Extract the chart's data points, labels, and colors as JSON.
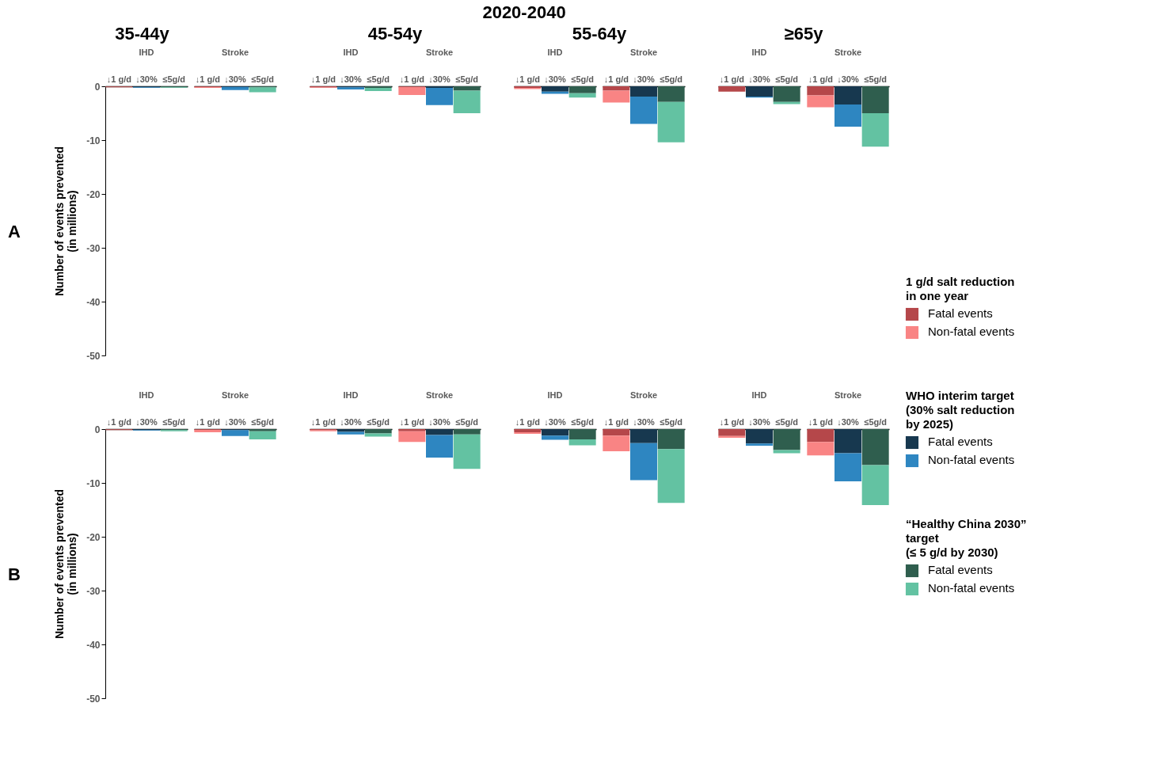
{
  "chart_data": [
    {
      "type": "bar",
      "stacked": true,
      "title": "IHD",
      "ylabel": "Number of events prevented\n(in millions)",
      "annotations": [
        "2020-2040",
        "35-44y",
        "A"
      ],
      "categories": [
        "↓1 g/d",
        "↓30%",
        "≤5g/d"
      ],
      "ylim": [
        -50,
        0
      ],
      "yticks": [
        0,
        -10,
        -20,
        -30,
        -40,
        -50
      ],
      "series": [
        {
          "color": "#b5474a",
          "values": [
            -0.1,
            null,
            null
          ]
        },
        {
          "color": "#f98484",
          "values": [
            -0.1,
            null,
            null
          ]
        },
        {
          "color": "#17384f",
          "values": [
            null,
            -0.2,
            null
          ]
        },
        {
          "color": "#2e86c1",
          "values": [
            null,
            -0.1,
            null
          ]
        },
        {
          "color": "#2f5e4e",
          "values": [
            null,
            null,
            -0.2
          ]
        },
        {
          "color": "#63c2a2",
          "values": [
            null,
            null,
            -0.1
          ]
        }
      ]
    },
    {
      "type": "bar",
      "stacked": true,
      "title": "Stroke",
      "tick_labels": "x",
      "categories": [
        "↓1 g/d",
        "↓30%",
        "≤5g/d"
      ],
      "ylim": [
        -50,
        0
      ],
      "series": [
        {
          "color": "#b5474a",
          "values": [
            -0.1,
            null,
            null
          ]
        },
        {
          "color": "#f98484",
          "values": [
            -0.2,
            null,
            null
          ]
        },
        {
          "color": "#17384f",
          "values": [
            null,
            -0.1,
            null
          ]
        },
        {
          "color": "#2e86c1",
          "values": [
            null,
            -0.6,
            null
          ]
        },
        {
          "color": "#2f5e4e",
          "values": [
            null,
            null,
            -0.2
          ]
        },
        {
          "color": "#63c2a2",
          "values": [
            null,
            null,
            -0.9
          ]
        }
      ]
    },
    {
      "type": "bar",
      "stacked": true,
      "title": "IHD",
      "tick_labels": "x",
      "annotations": [
        "45-54y"
      ],
      "categories": [
        "↓1 g/d",
        "↓30%",
        "≤5g/d"
      ],
      "ylim": [
        -50,
        0
      ],
      "series": [
        {
          "color": "#b5474a",
          "values": [
            -0.2,
            null,
            null
          ]
        },
        {
          "color": "#f98484",
          "values": [
            -0.1,
            null,
            null
          ]
        },
        {
          "color": "#17384f",
          "values": [
            null,
            -0.2,
            null
          ]
        },
        {
          "color": "#2e86c1",
          "values": [
            null,
            -0.4,
            null
          ]
        },
        {
          "color": "#2f5e4e",
          "values": [
            null,
            null,
            -0.3
          ]
        },
        {
          "color": "#63c2a2",
          "values": [
            null,
            null,
            -0.6
          ]
        }
      ]
    },
    {
      "type": "bar",
      "stacked": true,
      "title": "Stroke",
      "tick_labels": "x",
      "categories": [
        "↓1 g/d",
        "↓30%",
        "≤5g/d"
      ],
      "ylim": [
        -50,
        0
      ],
      "series": [
        {
          "color": "#b5474a",
          "values": [
            -0.1,
            null,
            null
          ]
        },
        {
          "color": "#f98484",
          "values": [
            -1.5,
            null,
            null
          ]
        },
        {
          "color": "#17384f",
          "values": [
            null,
            -0.3,
            null
          ]
        },
        {
          "color": "#2e86c1",
          "values": [
            null,
            -3.2,
            null
          ]
        },
        {
          "color": "#2f5e4e",
          "values": [
            null,
            null,
            -0.8
          ]
        },
        {
          "color": "#63c2a2",
          "values": [
            null,
            null,
            -4.2
          ]
        }
      ]
    },
    {
      "type": "bar",
      "stacked": true,
      "title": "IHD",
      "tick_labels": "x",
      "annotations": [
        "55-64y"
      ],
      "categories": [
        "↓1 g/d",
        "↓30%",
        "≤5g/d"
      ],
      "ylim": [
        -50,
        0
      ],
      "series": [
        {
          "color": "#b5474a",
          "values": [
            -0.3,
            null,
            null
          ]
        },
        {
          "color": "#f98484",
          "values": [
            -0.2,
            null,
            null
          ]
        },
        {
          "color": "#17384f",
          "values": [
            null,
            -1.0,
            null
          ]
        },
        {
          "color": "#2e86c1",
          "values": [
            null,
            -0.4,
            null
          ]
        },
        {
          "color": "#2f5e4e",
          "values": [
            null,
            null,
            -1.3
          ]
        },
        {
          "color": "#63c2a2",
          "values": [
            null,
            null,
            -0.8
          ]
        }
      ]
    },
    {
      "type": "bar",
      "stacked": true,
      "title": "Stroke",
      "tick_labels": "x",
      "categories": [
        "↓1 g/d",
        "↓30%",
        "≤5g/d"
      ],
      "ylim": [
        -50,
        0
      ],
      "series": [
        {
          "color": "#b5474a",
          "values": [
            -0.8,
            null,
            null
          ]
        },
        {
          "color": "#f98484",
          "values": [
            -2.2,
            null,
            null
          ]
        },
        {
          "color": "#17384f",
          "values": [
            null,
            -1.9,
            null
          ]
        },
        {
          "color": "#2e86c1",
          "values": [
            null,
            -5.1,
            null
          ]
        },
        {
          "color": "#2f5e4e",
          "values": [
            null,
            null,
            -2.9
          ]
        },
        {
          "color": "#63c2a2",
          "values": [
            null,
            null,
            -7.5
          ]
        }
      ]
    },
    {
      "type": "bar",
      "stacked": true,
      "title": "IHD",
      "tick_labels": "x",
      "annotations": [
        "≥65y"
      ],
      "categories": [
        "↓1 g/d",
        "↓30%",
        "≤5g/d"
      ],
      "ylim": [
        -50,
        0
      ],
      "series": [
        {
          "color": "#b5474a",
          "values": [
            -1.0,
            null,
            null
          ]
        },
        {
          "color": "#f98484",
          "values": [
            null,
            null,
            null
          ]
        },
        {
          "color": "#17384f",
          "values": [
            null,
            -1.9,
            null
          ]
        },
        {
          "color": "#2e86c1",
          "values": [
            null,
            -0.2,
            null
          ]
        },
        {
          "color": "#2f5e4e",
          "values": [
            null,
            null,
            -2.9
          ]
        },
        {
          "color": "#63c2a2",
          "values": [
            null,
            null,
            -0.4
          ]
        }
      ]
    },
    {
      "type": "bar",
      "stacked": true,
      "title": "Stroke",
      "tick_labels": "x",
      "legend": "right",
      "annotations": [
        "1 g/d salt reduction\nin one year",
        "WHO interim target\n(30% salt reduction\nby 2025)",
        "“Healthy China 2030”\ntarget\n(≤ 5 g/d by 2030)"
      ],
      "categories": [
        "↓1 g/d",
        "↓30%",
        "≤5g/d"
      ],
      "ylim": [
        -50,
        0
      ],
      "series": [
        {
          "name": "Fatal events",
          "color": "#b5474a",
          "values": [
            -1.7,
            null,
            null
          ]
        },
        {
          "name": "Non-fatal events",
          "color": "#f98484",
          "values": [
            -2.2,
            null,
            null
          ]
        },
        {
          "name": "Fatal events",
          "color": "#17384f",
          "values": [
            null,
            -3.4,
            null
          ]
        },
        {
          "name": "Non-fatal events",
          "color": "#2e86c1",
          "values": [
            null,
            -4.1,
            null
          ]
        },
        {
          "name": "Fatal events",
          "color": "#2f5e4e",
          "values": [
            null,
            null,
            -5.0
          ]
        },
        {
          "name": "Non-fatal events",
          "color": "#63c2a2",
          "values": [
            null,
            null,
            -6.2
          ]
        }
      ]
    },
    {
      "type": "bar",
      "stacked": true,
      "title": "IHD",
      "ylabel": "Number of events prevented\n(in millions)",
      "annotations": [
        "B"
      ],
      "categories": [
        "↓1 g/d",
        "↓30%",
        "≤5g/d"
      ],
      "ylim": [
        -50,
        0
      ],
      "yticks": [
        0,
        -10,
        -20,
        -30,
        -40,
        -50
      ],
      "series": [
        {
          "color": "#b5474a",
          "values": [
            -0.1,
            null,
            null
          ]
        },
        {
          "color": "#f98484",
          "values": [
            -0.1,
            null,
            null
          ]
        },
        {
          "color": "#17384f",
          "values": [
            null,
            -0.2,
            null
          ]
        },
        {
          "color": "#2e86c1",
          "values": [
            null,
            -0.1,
            null
          ]
        },
        {
          "color": "#2f5e4e",
          "values": [
            null,
            null,
            -0.2
          ]
        },
        {
          "color": "#63c2a2",
          "values": [
            null,
            null,
            -0.2
          ]
        }
      ]
    },
    {
      "type": "bar",
      "stacked": true,
      "title": "Stroke",
      "tick_labels": "x",
      "categories": [
        "↓1 g/d",
        "↓30%",
        "≤5g/d"
      ],
      "ylim": [
        -50,
        0
      ],
      "series": [
        {
          "color": "#b5474a",
          "values": [
            -0.1,
            null,
            null
          ]
        },
        {
          "color": "#f98484",
          "values": [
            -0.5,
            null,
            null
          ]
        },
        {
          "color": "#17384f",
          "values": [
            null,
            -0.2,
            null
          ]
        },
        {
          "color": "#2e86c1",
          "values": [
            null,
            -1.1,
            null
          ]
        },
        {
          "color": "#2f5e4e",
          "values": [
            null,
            null,
            -0.4
          ]
        },
        {
          "color": "#63c2a2",
          "values": [
            null,
            null,
            -1.5
          ]
        }
      ]
    },
    {
      "type": "bar",
      "stacked": true,
      "title": "IHD",
      "tick_labels": "x",
      "categories": [
        "↓1 g/d",
        "↓30%",
        "≤5g/d"
      ],
      "ylim": [
        -50,
        0
      ],
      "series": [
        {
          "color": "#b5474a",
          "values": [
            -0.2,
            null,
            null
          ]
        },
        {
          "color": "#f98484",
          "values": [
            -0.2,
            null,
            null
          ]
        },
        {
          "color": "#17384f",
          "values": [
            null,
            -0.5,
            null
          ]
        },
        {
          "color": "#2e86c1",
          "values": [
            null,
            -0.5,
            null
          ]
        },
        {
          "color": "#2f5e4e",
          "values": [
            null,
            null,
            -0.8
          ]
        },
        {
          "color": "#63c2a2",
          "values": [
            null,
            null,
            -0.6
          ]
        }
      ]
    },
    {
      "type": "bar",
      "stacked": true,
      "title": "Stroke",
      "tick_labels": "x",
      "categories": [
        "↓1 g/d",
        "↓30%",
        "≤5g/d"
      ],
      "ylim": [
        -50,
        0
      ],
      "series": [
        {
          "color": "#b5474a",
          "values": [
            -0.4,
            null,
            null
          ]
        },
        {
          "color": "#f98484",
          "values": [
            -2.0,
            null,
            null
          ]
        },
        {
          "color": "#17384f",
          "values": [
            null,
            -1.1,
            null
          ]
        },
        {
          "color": "#2e86c1",
          "values": [
            null,
            -4.2,
            null
          ]
        },
        {
          "color": "#2f5e4e",
          "values": [
            null,
            null,
            -1.0
          ]
        },
        {
          "color": "#63c2a2",
          "values": [
            null,
            null,
            -6.4
          ]
        }
      ]
    },
    {
      "type": "bar",
      "stacked": true,
      "title": "IHD",
      "tick_labels": "x",
      "categories": [
        "↓1 g/d",
        "↓30%",
        "≤5g/d"
      ],
      "ylim": [
        -50,
        0
      ],
      "series": [
        {
          "color": "#b5474a",
          "values": [
            -0.6,
            null,
            null
          ]
        },
        {
          "color": "#f98484",
          "values": [
            -0.3,
            null,
            null
          ]
        },
        {
          "color": "#17384f",
          "values": [
            null,
            -1.2,
            null
          ]
        },
        {
          "color": "#2e86c1",
          "values": [
            null,
            -0.8,
            null
          ]
        },
        {
          "color": "#2f5e4e",
          "values": [
            null,
            null,
            -1.9
          ]
        },
        {
          "color": "#63c2a2",
          "values": [
            null,
            null,
            -1.1
          ]
        }
      ]
    },
    {
      "type": "bar",
      "stacked": true,
      "title": "Stroke",
      "tick_labels": "x",
      "categories": [
        "↓1 g/d",
        "↓30%",
        "≤5g/d"
      ],
      "ylim": [
        -50,
        0
      ],
      "series": [
        {
          "color": "#b5474a",
          "values": [
            -1.2,
            null,
            null
          ]
        },
        {
          "color": "#f98484",
          "values": [
            -2.9,
            null,
            null
          ]
        },
        {
          "color": "#17384f",
          "values": [
            null,
            -2.6,
            null
          ]
        },
        {
          "color": "#2e86c1",
          "values": [
            null,
            -6.9,
            null
          ]
        },
        {
          "color": "#2f5e4e",
          "values": [
            null,
            null,
            -3.7
          ]
        },
        {
          "color": "#63c2a2",
          "values": [
            null,
            null,
            -10.0
          ]
        }
      ]
    },
    {
      "type": "bar",
      "stacked": true,
      "title": "IHD",
      "tick_labels": "x",
      "categories": [
        "↓1 g/d",
        "↓30%",
        "≤5g/d"
      ],
      "ylim": [
        -50,
        0
      ],
      "series": [
        {
          "color": "#b5474a",
          "values": [
            -1.3,
            null,
            null
          ]
        },
        {
          "color": "#f98484",
          "values": [
            -0.3,
            null,
            null
          ]
        },
        {
          "color": "#17384f",
          "values": [
            null,
            -2.7,
            null
          ]
        },
        {
          "color": "#2e86c1",
          "values": [
            null,
            -0.4,
            null
          ]
        },
        {
          "color": "#2f5e4e",
          "values": [
            null,
            null,
            -3.9
          ]
        },
        {
          "color": "#63c2a2",
          "values": [
            null,
            null,
            -0.6
          ]
        }
      ]
    },
    {
      "type": "bar",
      "stacked": true,
      "title": "Stroke",
      "tick_labels": "x",
      "categories": [
        "↓1 g/d",
        "↓30%",
        "≤5g/d"
      ],
      "ylim": [
        -50,
        0
      ],
      "series": [
        {
          "color": "#b5474a",
          "values": [
            -2.4,
            null,
            null
          ]
        },
        {
          "color": "#f98484",
          "values": [
            -2.5,
            null,
            null
          ]
        },
        {
          "color": "#17384f",
          "values": [
            null,
            -4.5,
            null
          ]
        },
        {
          "color": "#2e86c1",
          "values": [
            null,
            -5.2,
            null
          ]
        },
        {
          "color": "#2f5e4e",
          "values": [
            null,
            null,
            -6.7
          ]
        },
        {
          "color": "#63c2a2",
          "values": [
            null,
            null,
            -7.4
          ]
        }
      ]
    }
  ]
}
